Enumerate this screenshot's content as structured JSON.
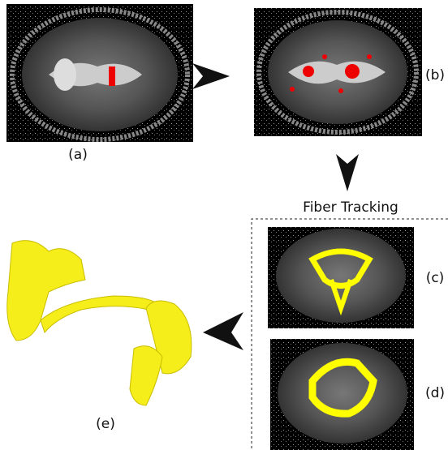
{
  "panels": {
    "a": "(a)",
    "b": "(b)",
    "c": "(c)",
    "d": "(d)",
    "e": "(e)"
  },
  "group_label": "Fiber Tracking"
}
